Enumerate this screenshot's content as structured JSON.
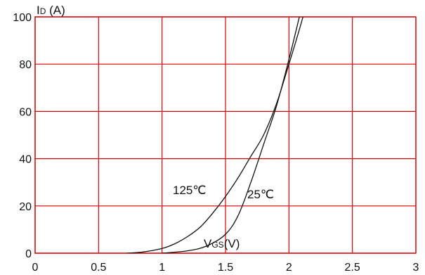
{
  "chart_data": {
    "type": "line",
    "xlabel": {
      "main": "V",
      "sub": "GS",
      "unit": "(V)"
    },
    "ylabel": {
      "main": "I",
      "sub": "D",
      "unit": " (A)"
    },
    "xlim": [
      0,
      3
    ],
    "ylim": [
      0,
      100
    ],
    "x_ticks": [
      "0",
      "0.5",
      "1",
      "1.5",
      "2",
      "2.5",
      "3"
    ],
    "y_ticks": [
      "0",
      "20",
      "40",
      "60",
      "80",
      "100"
    ],
    "grid": true,
    "colors": {
      "grid": "#d80000",
      "curve": "#111111"
    },
    "series": [
      {
        "label": "125℃",
        "x": [
          0.72,
          0.85,
          1.0,
          1.1,
          1.2,
          1.3,
          1.4,
          1.5,
          1.6,
          1.7,
          1.8,
          1.9,
          2.0,
          2.1,
          2.16
        ],
        "y": [
          0,
          0.5,
          2,
          4,
          7,
          11,
          17,
          24,
          32,
          41,
          50,
          63,
          80,
          98,
          110
        ]
      },
      {
        "label": "25℃",
        "x": [
          1.0,
          1.2,
          1.35,
          1.5,
          1.6,
          1.7,
          1.8,
          1.9,
          2.0,
          2.1,
          2.14
        ],
        "y": [
          0,
          1,
          3,
          8,
          16,
          30,
          46,
          62,
          82,
          104,
          112
        ]
      }
    ]
  }
}
